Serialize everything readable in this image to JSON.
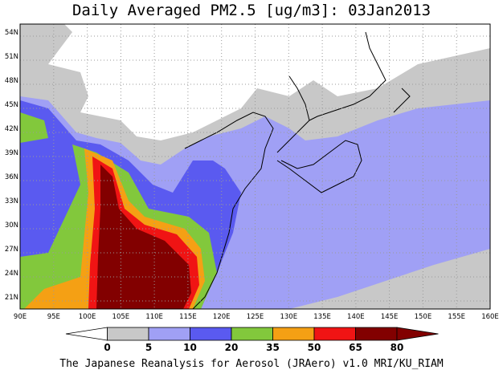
{
  "title": "Daily Averaged PM2.5 [ug/m3]: 03Jan2013",
  "footer": "The Japanese Reanalysis for Aerosol (JRAero) v1.0 MRI/KU_RIAM",
  "map": {
    "lon_range": [
      90,
      160
    ],
    "lat_range": [
      19.5,
      55
    ],
    "lon_ticks": [
      "90E",
      "95E",
      "100E",
      "105E",
      "110E",
      "115E",
      "120E",
      "125E",
      "130E",
      "135E",
      "140E",
      "145E",
      "150E",
      "155E",
      "160E"
    ],
    "lat_ticks": [
      "21N",
      "24N",
      "27N",
      "30N",
      "33N",
      "36N",
      "39N",
      "42N",
      "45N",
      "48N",
      "51N",
      "54N"
    ]
  },
  "colorbar": {
    "labels": [
      "0",
      "5",
      "10",
      "20",
      "35",
      "50",
      "65",
      "80"
    ],
    "colors": [
      "#ffffff",
      "#c8c8c8",
      "#a0a0f5",
      "#5a5af0",
      "#82c83c",
      "#f5a014",
      "#f01414",
      "#820000"
    ]
  }
}
